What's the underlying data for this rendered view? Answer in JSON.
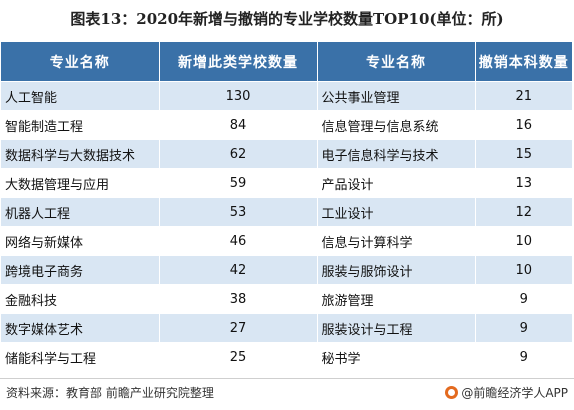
{
  "title": "图表13：2020年新增与撤销的专业学校数量TOP10(单位：所)",
  "headers": [
    "专业名称",
    "新增此类学校数量",
    "专业名称",
    "撤销本科数量"
  ],
  "rows": [
    [
      "人工智能",
      "130",
      "公共事业管理",
      "21"
    ],
    [
      "智能制造工程",
      "84",
      "信息管理与信息系统",
      "16"
    ],
    [
      "数据科学与大数据技术",
      "62",
      "电子信息科学与技术",
      "15"
    ],
    [
      "大数据管理与应用",
      "59",
      "产品设计",
      "13"
    ],
    [
      "机器人工程",
      "53",
      "工业设计",
      "12"
    ],
    [
      "网络与新媒体",
      "46",
      "信息与计算科学",
      "10"
    ],
    [
      "跨境电子商务",
      "42",
      "服装与服饰设计",
      "10"
    ],
    [
      "金融科技",
      "38",
      "旅游管理",
      "9"
    ],
    [
      "数字媒体艺术",
      "27",
      "服装设计与工程",
      "9"
    ],
    [
      "储能科学与工程",
      "25",
      "秘书学",
      "9"
    ]
  ],
  "source": "资料来源：教育部 前瞻产业研究院整理",
  "brand": "@前瞻经济学人APP",
  "colors": {
    "header_bg": "#3a71a8",
    "stripe": "#d9e6f3"
  }
}
